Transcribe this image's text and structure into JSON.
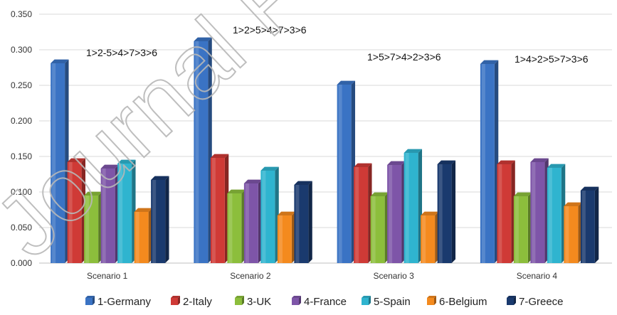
{
  "chart_data": {
    "type": "bar",
    "style": "3d-clustered-column",
    "categories": [
      "Scenario 1",
      "Scenario 2",
      "Scenario 3",
      "Scenario 4"
    ],
    "series": [
      {
        "name": "1-Germany",
        "color": "#3a73c4",
        "values": [
          0.281,
          0.312,
          0.251,
          0.28
        ]
      },
      {
        "name": "2-Italy",
        "color": "#cf3a36",
        "values": [
          0.142,
          0.148,
          0.135,
          0.139
        ]
      },
      {
        "name": "3-UK",
        "color": "#8cbe3c",
        "values": [
          0.095,
          0.098,
          0.094,
          0.094
        ]
      },
      {
        "name": "4-France",
        "color": "#7e55a8",
        "values": [
          0.133,
          0.112,
          0.138,
          0.142
        ]
      },
      {
        "name": "5-Spain",
        "color": "#2fb4cf",
        "values": [
          0.14,
          0.13,
          0.155,
          0.134
        ]
      },
      {
        "name": "6-Belgium",
        "color": "#f48a1e",
        "values": [
          0.072,
          0.067,
          0.067,
          0.08
        ]
      },
      {
        "name": "7-Greece",
        "color": "#1a3a6e",
        "values": [
          0.117,
          0.11,
          0.139,
          0.102
        ]
      }
    ],
    "annotations": [
      "1>2-5>4>7>3>6",
      "1>2>5>4>7>3>6",
      "1>5>7>4>2>3>6",
      "1>4>2>5>7>3>6"
    ],
    "ylim": [
      0,
      0.35
    ],
    "yticks": [
      "0.000",
      "0.050",
      "0.100",
      "0.150",
      "0.200",
      "0.250",
      "0.300",
      "0.350"
    ],
    "grid": true,
    "legend_position": "bottom",
    "watermark_text": "Journal Pre-proof"
  }
}
